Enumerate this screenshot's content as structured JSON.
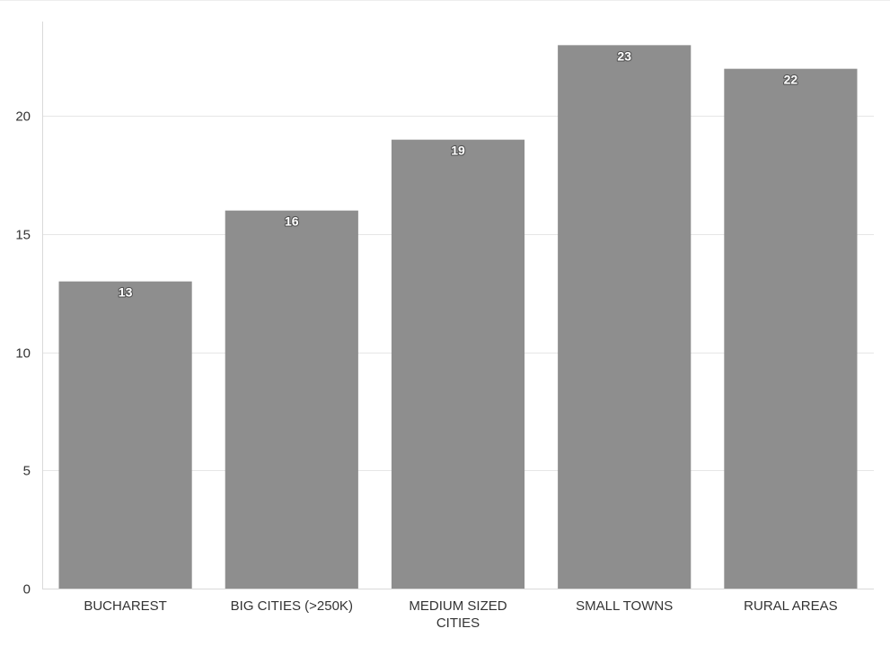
{
  "chart_data": {
    "type": "bar",
    "title": "",
    "xlabel": "",
    "ylabel": "",
    "categories": [
      [
        "BUCHAREST"
      ],
      [
        "BIG CITIES (>250K)"
      ],
      [
        "MEDIUM SIZED",
        "CITIES"
      ],
      [
        "SMALL TOWNS"
      ],
      [
        "RURAL AREAS"
      ]
    ],
    "values": [
      13,
      16,
      19,
      23,
      22
    ],
    "ylim": [
      0,
      24
    ],
    "yticks": [
      0,
      5,
      10,
      15,
      20
    ],
    "grid": true,
    "data_labels": true,
    "legend": "none",
    "colors": {
      "bar": "#8e8e8e",
      "grid": "#e6e6e6",
      "axis": "#d9d9d9",
      "text": "#333333",
      "data_label_text": "#ffffff",
      "data_label_outline": "#555555"
    }
  }
}
